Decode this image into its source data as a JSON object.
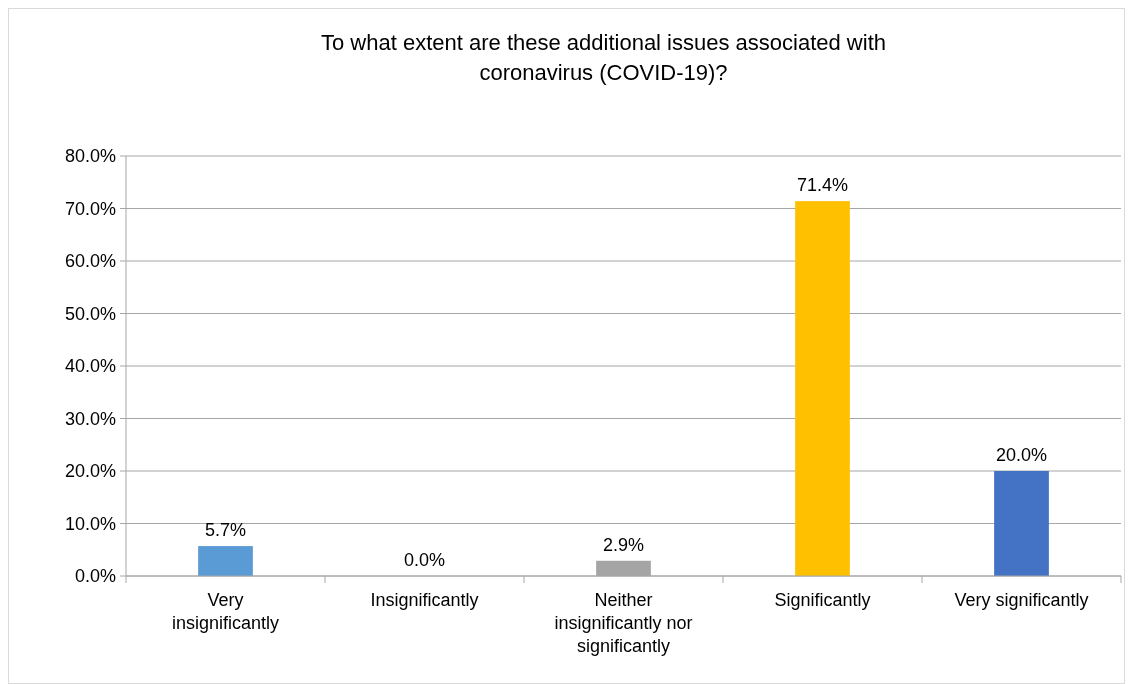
{
  "chart_data": {
    "type": "bar",
    "title": "To what extent are these additional issues associated with coronavirus (COVID-19)?",
    "categories": [
      "Very insignificantly",
      "Insignificantly",
      "Neither insignificantly nor significantly",
      "Significantly",
      "Very significantly"
    ],
    "values": [
      5.7,
      0.0,
      2.9,
      71.4,
      20.0
    ],
    "colors": [
      "#5b9bd5",
      "#ed7d31",
      "#a5a5a5",
      "#ffc000",
      "#4472c4"
    ],
    "value_labels": [
      "5.7%",
      "0.0%",
      "2.9%",
      "71.4%",
      "20.0%"
    ],
    "ylim": [
      0,
      80
    ],
    "yticks": [
      {
        "value": 0,
        "label": "0.0%"
      },
      {
        "value": 10,
        "label": "10.0%"
      },
      {
        "value": 20,
        "label": "20.0%"
      },
      {
        "value": 30,
        "label": "30.0%"
      },
      {
        "value": 40,
        "label": "40.0%"
      },
      {
        "value": 50,
        "label": "50.0%"
      },
      {
        "value": 60,
        "label": "60.0%"
      },
      {
        "value": 70,
        "label": "70.0%"
      },
      {
        "value": 80,
        "label": "80.0%"
      }
    ],
    "grid": "y"
  }
}
